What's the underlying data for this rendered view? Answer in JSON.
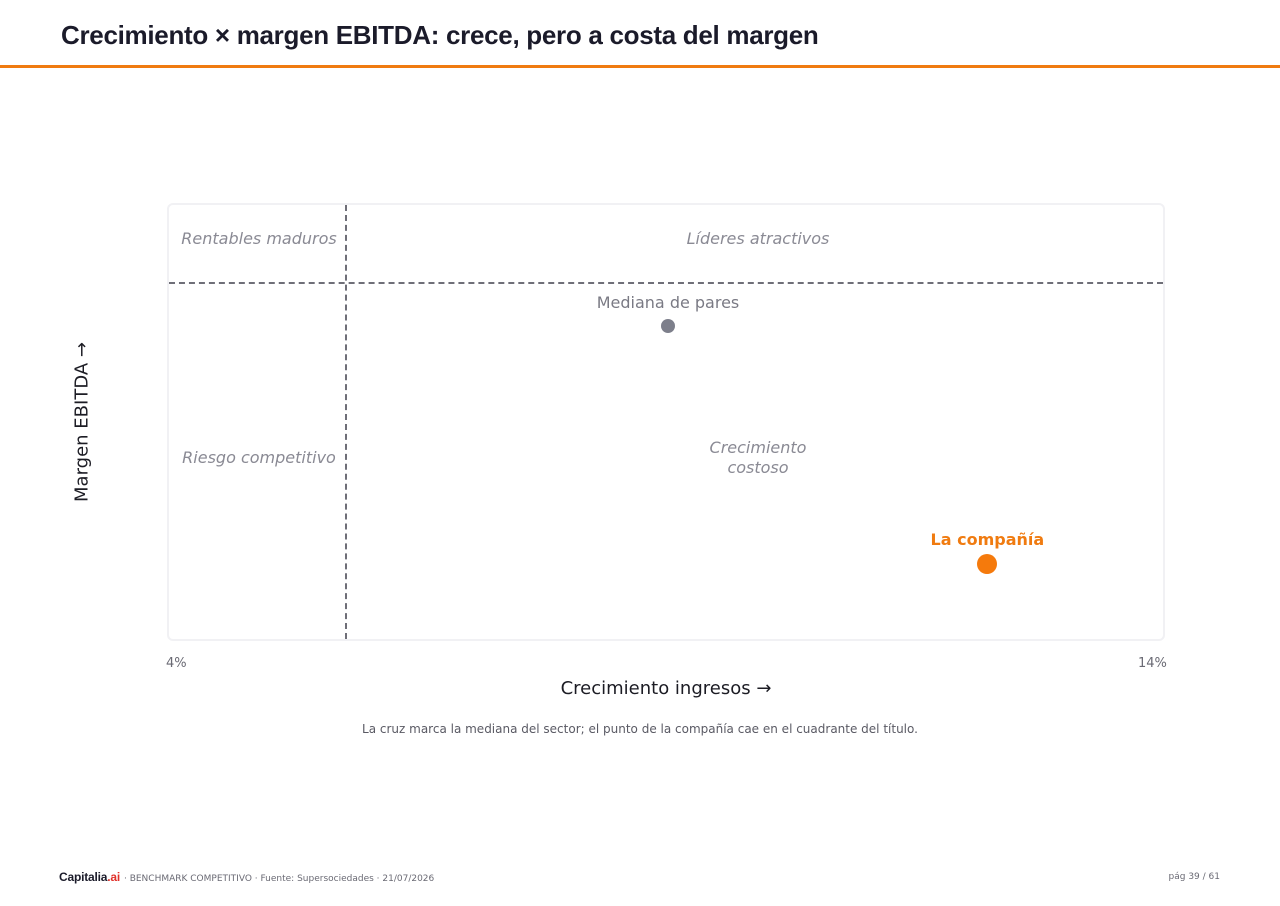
{
  "header": {
    "title": "Crecimiento × margen EBITDA: crece, pero a costa del margen"
  },
  "chart_data": {
    "type": "scatter",
    "xlabel": "Crecimiento ingresos →",
    "ylabel": "Margen EBITDA →",
    "x_tick_labels": [
      "4%",
      "14%"
    ],
    "xlim": [
      4,
      14
    ],
    "x_unit": "%",
    "y_axis": "no numeric ticks",
    "grid": false,
    "quadrant_labels": {
      "top_left": "Rentables maduros",
      "top_right": "Líderes atractivos",
      "bottom_left": "Riesgo competitivo",
      "bottom_right": "Crecimiento costoso"
    },
    "points": [
      {
        "label": "Mediana de pares",
        "x": 9.0,
        "color": "#7d7f8b"
      },
      {
        "label": "La compañía",
        "x": 12.2,
        "color": "#f57a0c"
      }
    ],
    "caption": "La cruz marca la mediana del sector; el punto de la compañía cae en el cuadrante del título."
  },
  "footer": {
    "brand": "Capitalia",
    "brand_suffix": ".ai",
    "meta": "· BENCHMARK COMPETITIVO · Fuente: Supersociedades · 21/07/2026",
    "page": "pág 39 / 61"
  }
}
